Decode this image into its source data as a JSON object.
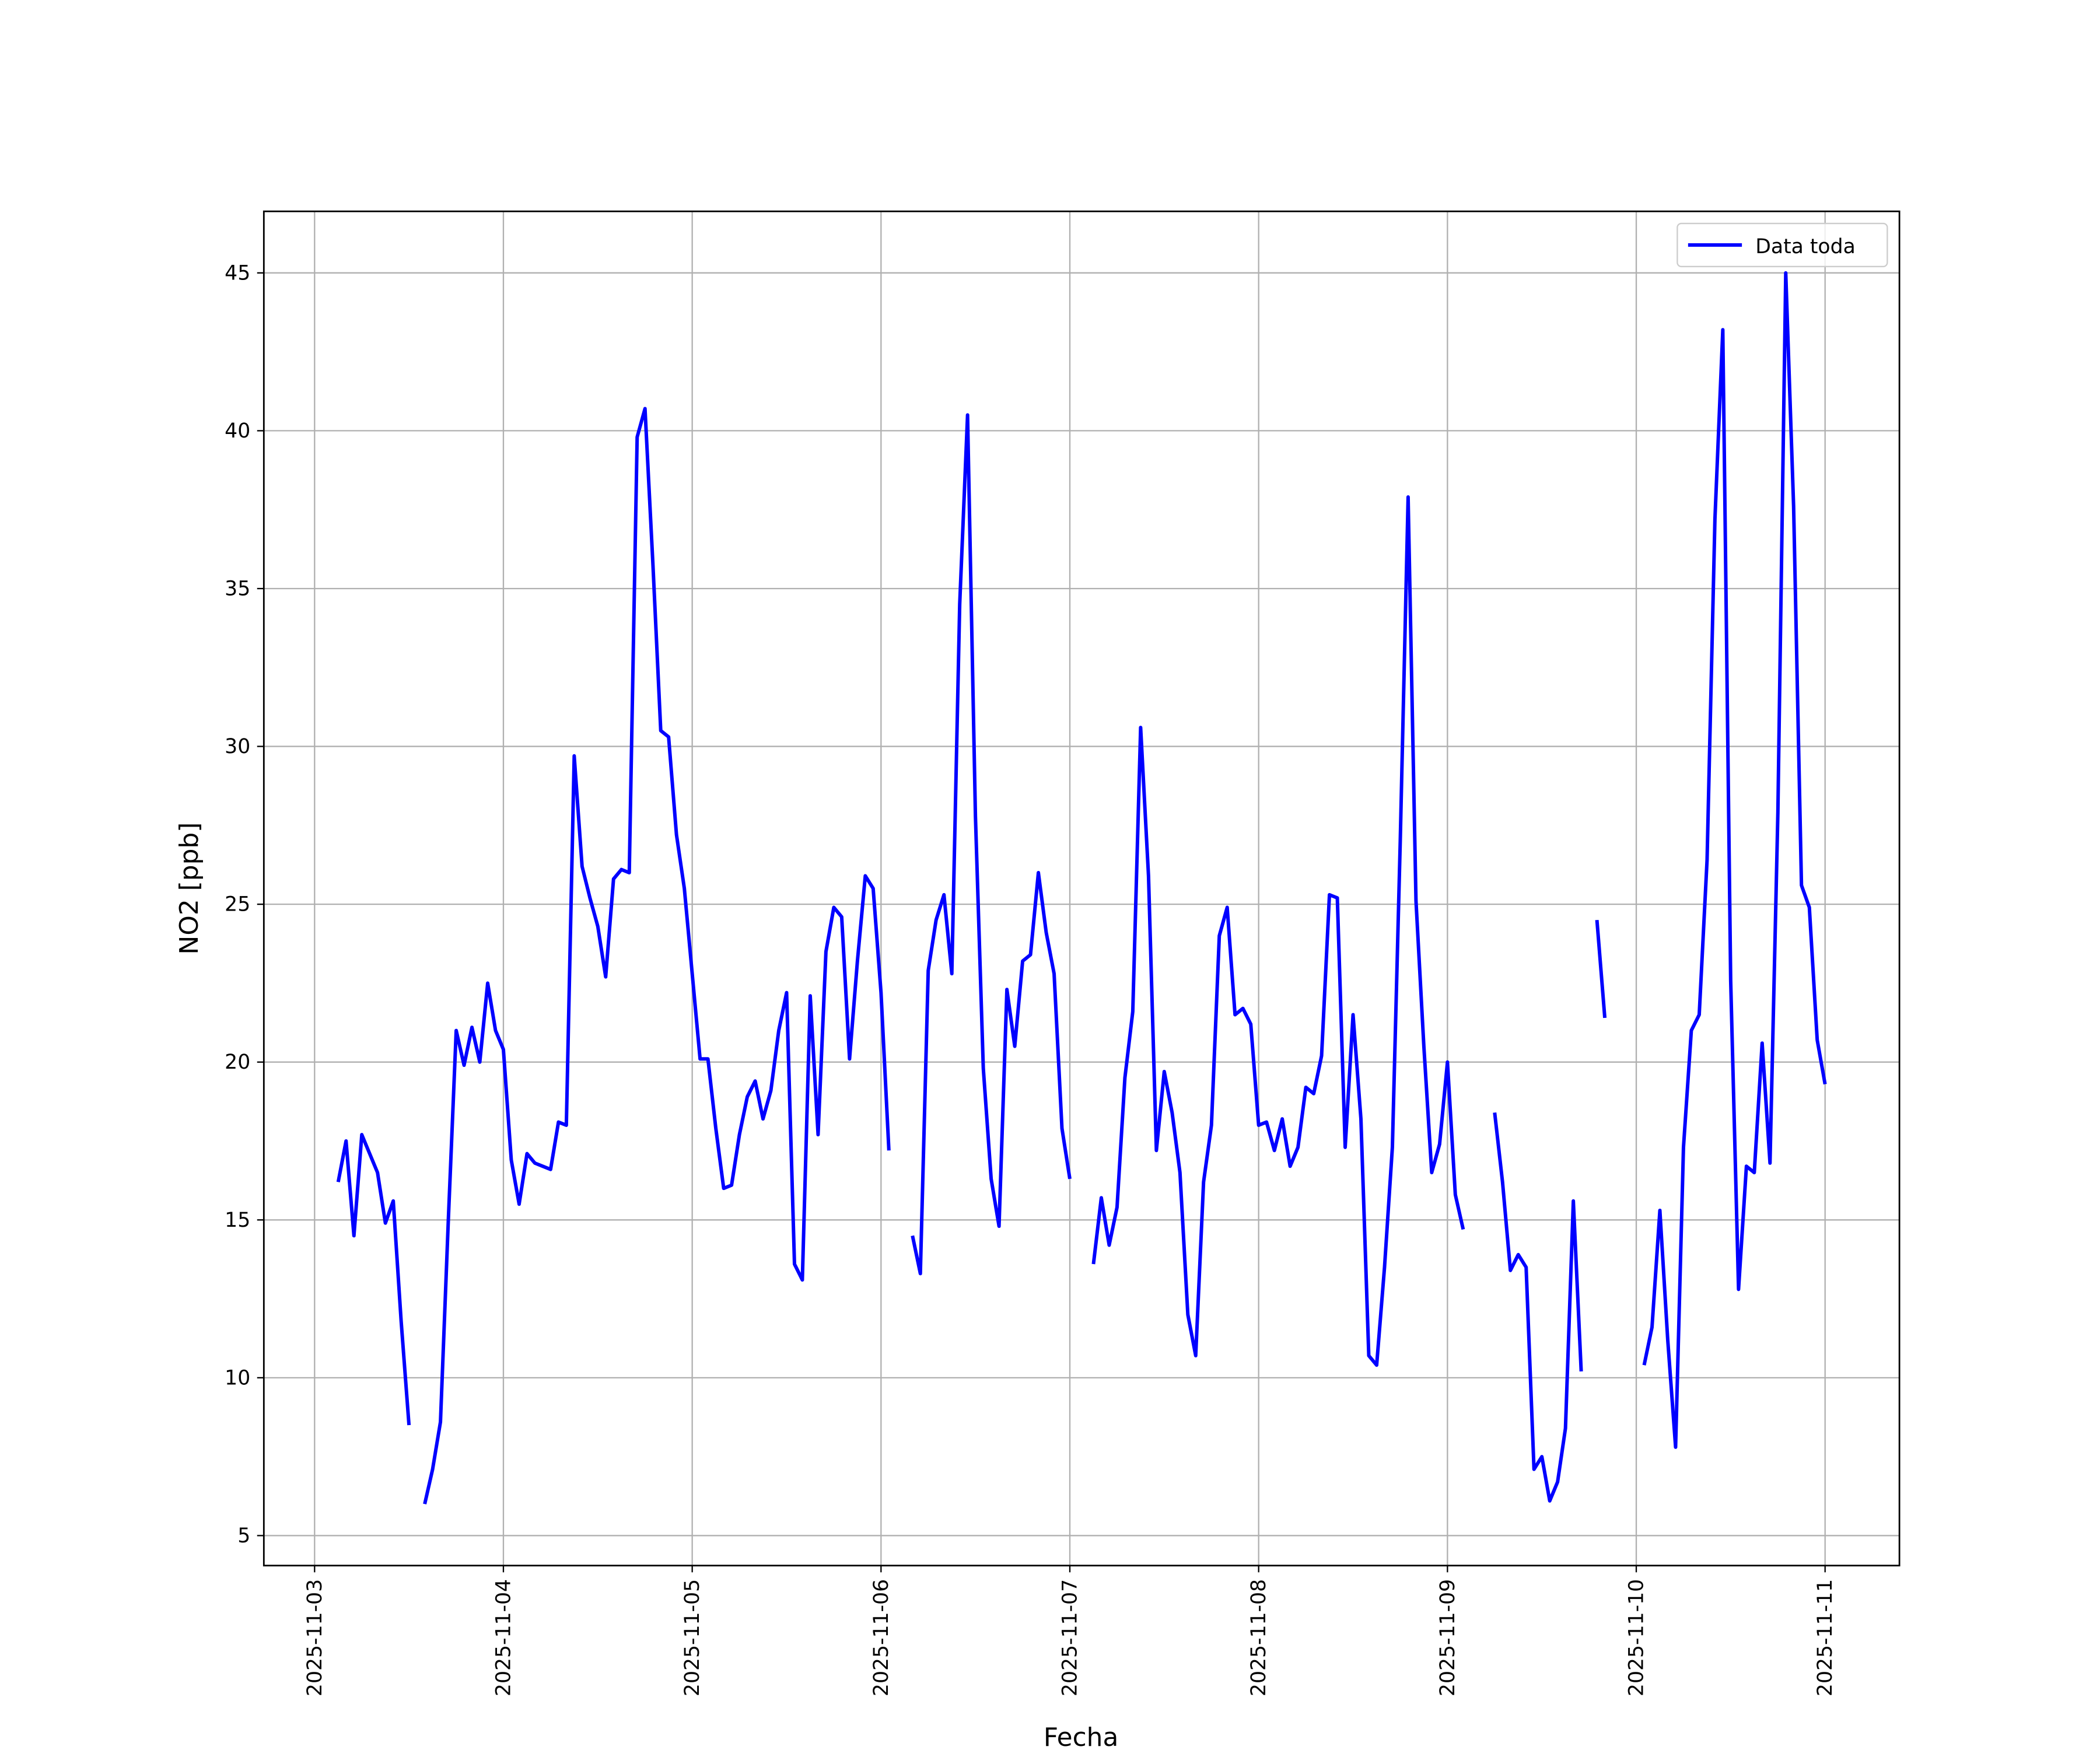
{
  "chart_data": {
    "type": "line",
    "xlabel": "Fecha",
    "ylabel": "NO2 [ppb]",
    "x": [
      "2025-11-03 03:00",
      "2025-11-03 04:00",
      "2025-11-03 05:00",
      "2025-11-03 06:00",
      "2025-11-03 07:00",
      "2025-11-03 08:00",
      "2025-11-03 09:00",
      "2025-11-03 10:00",
      "2025-11-03 11:00",
      "2025-11-03 12:00",
      "2025-11-03 13:00",
      "2025-11-03 14:00",
      "2025-11-03 15:00",
      "2025-11-03 16:00",
      "2025-11-03 17:00",
      "2025-11-03 18:00",
      "2025-11-03 19:00",
      "2025-11-03 20:00",
      "2025-11-03 21:00",
      "2025-11-03 22:00",
      "2025-11-03 23:00",
      "2025-11-04 00:00",
      "2025-11-04 01:00",
      "2025-11-04 02:00",
      "2025-11-04 03:00",
      "2025-11-04 04:00",
      "2025-11-04 05:00",
      "2025-11-04 06:00",
      "2025-11-04 07:00",
      "2025-11-04 08:00",
      "2025-11-04 09:00",
      "2025-11-04 10:00",
      "2025-11-04 11:00",
      "2025-11-04 12:00",
      "2025-11-04 13:00",
      "2025-11-04 14:00",
      "2025-11-04 15:00",
      "2025-11-04 16:00",
      "2025-11-04 17:00",
      "2025-11-04 18:00",
      "2025-11-04 19:00",
      "2025-11-04 20:00",
      "2025-11-04 21:00",
      "2025-11-04 22:00",
      "2025-11-04 23:00",
      "2025-11-05 00:00",
      "2025-11-05 01:00",
      "2025-11-05 02:00",
      "2025-11-05 03:00",
      "2025-11-05 04:00",
      "2025-11-05 05:00",
      "2025-11-05 06:00",
      "2025-11-05 07:00",
      "2025-11-05 08:00",
      "2025-11-05 09:00",
      "2025-11-05 10:00",
      "2025-11-05 11:00",
      "2025-11-05 12:00",
      "2025-11-05 13:00",
      "2025-11-05 14:00",
      "2025-11-05 15:00",
      "2025-11-05 16:00",
      "2025-11-05 17:00",
      "2025-11-05 18:00",
      "2025-11-05 19:00",
      "2025-11-05 20:00",
      "2025-11-05 21:00",
      "2025-11-05 22:00",
      "2025-11-05 23:00",
      "2025-11-06 00:00",
      "2025-11-06 01:00",
      "2025-11-06 02:00",
      "2025-11-06 03:00",
      "2025-11-06 04:00",
      "2025-11-06 05:00",
      "2025-11-06 06:00",
      "2025-11-06 07:00",
      "2025-11-06 08:00",
      "2025-11-06 09:00",
      "2025-11-06 10:00",
      "2025-11-06 11:00",
      "2025-11-06 12:00",
      "2025-11-06 13:00",
      "2025-11-06 14:00",
      "2025-11-06 15:00",
      "2025-11-06 16:00",
      "2025-11-06 17:00",
      "2025-11-06 18:00",
      "2025-11-06 19:00",
      "2025-11-06 20:00",
      "2025-11-06 21:00",
      "2025-11-06 22:00",
      "2025-11-06 23:00",
      "2025-11-07 00:00",
      "2025-11-07 01:00",
      "2025-11-07 02:00",
      "2025-11-07 03:00",
      "2025-11-07 04:00",
      "2025-11-07 05:00",
      "2025-11-07 06:00",
      "2025-11-07 07:00",
      "2025-11-07 08:00",
      "2025-11-07 09:00",
      "2025-11-07 10:00",
      "2025-11-07 11:00",
      "2025-11-07 12:00",
      "2025-11-07 13:00",
      "2025-11-07 14:00",
      "2025-11-07 15:00",
      "2025-11-07 16:00",
      "2025-11-07 17:00",
      "2025-11-07 18:00",
      "2025-11-07 19:00",
      "2025-11-07 20:00",
      "2025-11-07 21:00",
      "2025-11-07 22:00",
      "2025-11-07 23:00",
      "2025-11-08 00:00",
      "2025-11-08 01:00",
      "2025-11-08 02:00",
      "2025-11-08 03:00",
      "2025-11-08 04:00",
      "2025-11-08 05:00",
      "2025-11-08 06:00",
      "2025-11-08 07:00",
      "2025-11-08 08:00",
      "2025-11-08 09:00",
      "2025-11-08 10:00",
      "2025-11-08 11:00",
      "2025-11-08 12:00",
      "2025-11-08 13:00",
      "2025-11-08 14:00",
      "2025-11-08 15:00",
      "2025-11-08 16:00",
      "2025-11-08 17:00",
      "2025-11-08 18:00",
      "2025-11-08 19:00",
      "2025-11-08 20:00",
      "2025-11-08 21:00",
      "2025-11-08 22:00",
      "2025-11-08 23:00",
      "2025-11-09 00:00",
      "2025-11-09 01:00",
      "2025-11-09 02:00",
      "2025-11-09 03:00",
      "2025-11-09 04:00",
      "2025-11-09 05:00",
      "2025-11-09 06:00",
      "2025-11-09 07:00",
      "2025-11-09 08:00",
      "2025-11-09 09:00",
      "2025-11-09 10:00",
      "2025-11-09 11:00",
      "2025-11-09 12:00",
      "2025-11-09 13:00",
      "2025-11-09 14:00",
      "2025-11-09 15:00",
      "2025-11-09 16:00",
      "2025-11-09 17:00",
      "2025-11-09 18:00",
      "2025-11-09 19:00",
      "2025-11-09 20:00",
      "2025-11-09 21:00",
      "2025-11-09 22:00",
      "2025-11-09 23:00",
      "2025-11-10 00:00",
      "2025-11-10 01:00",
      "2025-11-10 02:00",
      "2025-11-10 03:00",
      "2025-11-10 04:00",
      "2025-11-10 05:00",
      "2025-11-10 06:00",
      "2025-11-10 07:00",
      "2025-11-10 08:00",
      "2025-11-10 09:00",
      "2025-11-10 10:00",
      "2025-11-10 11:00",
      "2025-11-10 12:00",
      "2025-11-10 13:00",
      "2025-11-10 14:00",
      "2025-11-10 15:00",
      "2025-11-10 16:00",
      "2025-11-10 17:00",
      "2025-11-10 18:00",
      "2025-11-10 19:00",
      "2025-11-10 20:00",
      "2025-11-10 21:00",
      "2025-11-10 22:00",
      "2025-11-10 23:00",
      "2025-11-11 00:00"
    ],
    "series": [
      {
        "name": "Data toda",
        "color": "#0000ff",
        "values": [
          16.2,
          17.5,
          14.5,
          17.7,
          17.1,
          16.5,
          14.9,
          15.6,
          11.8,
          8.5,
          null,
          6.0,
          7.1,
          8.6,
          15.0,
          21.0,
          19.9,
          21.1,
          20.0,
          22.5,
          21.0,
          20.4,
          16.9,
          15.5,
          17.1,
          16.8,
          16.7,
          16.6,
          18.1,
          18.0,
          29.7,
          26.2,
          25.2,
          24.3,
          22.7,
          25.8,
          26.1,
          26.0,
          39.8,
          40.7,
          35.8,
          30.5,
          30.3,
          27.2,
          25.5,
          22.8,
          20.1,
          20.1,
          17.9,
          16.0,
          16.1,
          17.7,
          18.9,
          19.4,
          18.2,
          19.1,
          21.0,
          22.2,
          13.6,
          13.1,
          22.1,
          17.7,
          23.5,
          24.9,
          24.6,
          20.1,
          23.2,
          25.9,
          25.5,
          22.2,
          17.2,
          null,
          null,
          14.5,
          13.3,
          22.9,
          24.5,
          25.3,
          22.8,
          34.5,
          40.5,
          27.8,
          19.8,
          16.3,
          14.8,
          22.3,
          20.5,
          23.2,
          23.4,
          26.0,
          24.1,
          22.8,
          17.9,
          16.3,
          null,
          null,
          13.6,
          15.7,
          14.2,
          15.4,
          19.5,
          21.6,
          30.6,
          25.9,
          17.2,
          19.7,
          18.4,
          16.5,
          12.0,
          10.7,
          16.2,
          18.0,
          24.0,
          24.9,
          21.5,
          21.7,
          21.2,
          18.0,
          18.1,
          17.2,
          18.2,
          16.7,
          17.3,
          19.2,
          19.0,
          20.2,
          25.3,
          25.2,
          17.3,
          21.5,
          18.2,
          10.7,
          10.4,
          13.5,
          17.3,
          27.0,
          37.9,
          25.1,
          20.5,
          16.5,
          17.4,
          20.0,
          15.8,
          14.7,
          null,
          null,
          null,
          18.4,
          16.2,
          13.4,
          13.9,
          13.5,
          7.1,
          7.5,
          6.1,
          6.7,
          8.4,
          15.6,
          10.2,
          null,
          24.5,
          21.4,
          null,
          null,
          null,
          null,
          10.4,
          11.6,
          15.3,
          11.2,
          7.8,
          17.3,
          21.0,
          21.5,
          26.4,
          37.2,
          43.2,
          22.6,
          12.8,
          16.7,
          16.5,
          20.6,
          16.8,
          27.9,
          45.0,
          37.6,
          25.6,
          24.9,
          20.7,
          19.3
        ]
      }
    ],
    "xlim": [
      "2025-11-02 17:33",
      "2025-11-11 09:27"
    ],
    "xticks": [
      "2025-11-03",
      "2025-11-04",
      "2025-11-05",
      "2025-11-06",
      "2025-11-07",
      "2025-11-08",
      "2025-11-09",
      "2025-11-10",
      "2025-11-11"
    ],
    "ylim": [
      4.05,
      46.95
    ],
    "yticks": [
      5,
      10,
      15,
      20,
      25,
      30,
      35,
      40,
      45
    ],
    "grid": true,
    "legend": "upper right"
  }
}
